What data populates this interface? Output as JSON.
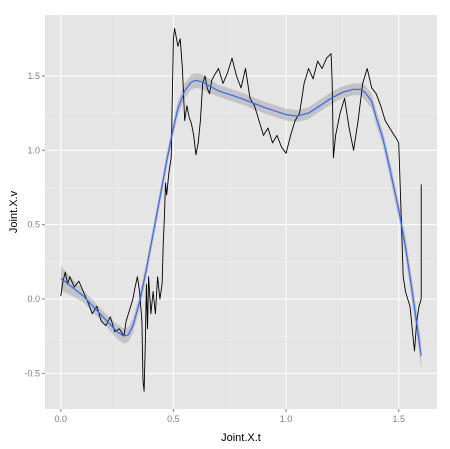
{
  "chart_data": {
    "type": "line",
    "title": "",
    "xlabel": "Joint.X.t",
    "ylabel": "Joint.X.v",
    "xlim": [
      -0.07,
      1.67
    ],
    "ylim": [
      -0.74,
      1.91
    ],
    "x_ticks": [
      0.0,
      0.5,
      1.0,
      1.5
    ],
    "x_tick_labels": [
      "0.0",
      "0.5",
      "1.0",
      "1.5"
    ],
    "y_ticks": [
      -0.5,
      0.0,
      0.5,
      1.0,
      1.5
    ],
    "y_tick_labels": [
      "-0.5",
      "0.0",
      "0.5",
      "1.0",
      "1.5"
    ],
    "grid": true,
    "colors": {
      "panel_background": "#e5e5e5",
      "major_grid": "#ffffff",
      "minor_grid": "#f0f0f0",
      "raw_series": "#000000",
      "smooth_line": "#3366ff",
      "smooth_band": "#999999"
    },
    "series": [
      {
        "role": "raw",
        "x": [
          0.0,
          0.01,
          0.02,
          0.03,
          0.04,
          0.06,
          0.08,
          0.1,
          0.12,
          0.14,
          0.16,
          0.18,
          0.2,
          0.22,
          0.24,
          0.26,
          0.28,
          0.29,
          0.3,
          0.32,
          0.33,
          0.34,
          0.35,
          0.36,
          0.365,
          0.37,
          0.375,
          0.38,
          0.385,
          0.39,
          0.4,
          0.41,
          0.42,
          0.43,
          0.44,
          0.45,
          0.455,
          0.46,
          0.465,
          0.47,
          0.48,
          0.49,
          0.5,
          0.505,
          0.51,
          0.52,
          0.53,
          0.54,
          0.55,
          0.56,
          0.57,
          0.58,
          0.59,
          0.6,
          0.61,
          0.62,
          0.63,
          0.64,
          0.65,
          0.66,
          0.67,
          0.68,
          0.7,
          0.72,
          0.74,
          0.76,
          0.78,
          0.8,
          0.82,
          0.84,
          0.86,
          0.88,
          0.9,
          0.92,
          0.94,
          0.96,
          0.98,
          1.0,
          1.02,
          1.04,
          1.06,
          1.08,
          1.1,
          1.12,
          1.14,
          1.16,
          1.18,
          1.2,
          1.205,
          1.21,
          1.22,
          1.24,
          1.26,
          1.28,
          1.3,
          1.32,
          1.34,
          1.36,
          1.38,
          1.4,
          1.42,
          1.44,
          1.46,
          1.48,
          1.49,
          1.5,
          1.51,
          1.52,
          1.53,
          1.54,
          1.55,
          1.56,
          1.57,
          1.58,
          1.59,
          1.6,
          1.6,
          1.6
        ],
        "y": [
          0.02,
          0.12,
          0.18,
          0.1,
          0.15,
          0.08,
          0.12,
          0.05,
          -0.02,
          -0.1,
          -0.05,
          -0.15,
          -0.18,
          -0.12,
          -0.22,
          -0.2,
          -0.25,
          -0.15,
          -0.1,
          0.0,
          0.08,
          0.15,
          0.05,
          -0.15,
          -0.55,
          -0.62,
          -0.3,
          0.1,
          -0.2,
          0.15,
          -0.1,
          0.05,
          -0.1,
          0.15,
          0.0,
          0.1,
          0.38,
          0.55,
          0.78,
          0.7,
          0.85,
          0.95,
          1.75,
          1.82,
          1.78,
          1.7,
          1.75,
          1.55,
          1.2,
          1.3,
          1.22,
          1.18,
          1.1,
          0.97,
          1.05,
          1.2,
          1.45,
          1.5,
          1.42,
          1.38,
          1.47,
          1.5,
          1.55,
          1.45,
          1.52,
          1.62,
          1.5,
          1.42,
          1.55,
          1.35,
          1.3,
          1.2,
          1.1,
          1.15,
          1.05,
          1.1,
          1.02,
          0.98,
          1.1,
          1.2,
          1.25,
          1.45,
          1.55,
          1.48,
          1.6,
          1.55,
          1.62,
          1.65,
          1.45,
          0.95,
          1.1,
          1.25,
          1.35,
          1.15,
          1.0,
          1.2,
          1.45,
          1.55,
          1.42,
          1.38,
          1.3,
          1.2,
          1.15,
          1.1,
          1.08,
          1.05,
          0.6,
          0.15,
          0.05,
          0.0,
          -0.05,
          -0.2,
          -0.35,
          -0.15,
          -0.05,
          0.0,
          0.35,
          0.77
        ]
      },
      {
        "role": "smooth",
        "x": [
          0.0,
          0.1,
          0.2,
          0.25,
          0.28,
          0.3,
          0.32,
          0.35,
          0.38,
          0.4,
          0.42,
          0.45,
          0.47,
          0.5,
          0.52,
          0.55,
          0.58,
          0.6,
          0.63,
          0.65,
          0.7,
          0.8,
          0.9,
          1.0,
          1.05,
          1.1,
          1.15,
          1.2,
          1.25,
          1.3,
          1.33,
          1.35,
          1.38,
          1.4,
          1.43,
          1.46,
          1.5,
          1.53,
          1.56,
          1.6
        ],
        "y": [
          0.14,
          0.02,
          -0.14,
          -0.22,
          -0.25,
          -0.24,
          -0.18,
          -0.02,
          0.2,
          0.36,
          0.52,
          0.76,
          0.93,
          1.15,
          1.28,
          1.4,
          1.46,
          1.47,
          1.46,
          1.44,
          1.4,
          1.35,
          1.29,
          1.24,
          1.23,
          1.25,
          1.3,
          1.35,
          1.39,
          1.41,
          1.41,
          1.39,
          1.33,
          1.22,
          1.08,
          0.88,
          0.6,
          0.35,
          0.05,
          -0.38
        ],
        "se": [
          0.08,
          0.04,
          0.04,
          0.05,
          0.05,
          0.05,
          0.05,
          0.05,
          0.05,
          0.05,
          0.05,
          0.05,
          0.05,
          0.05,
          0.05,
          0.05,
          0.05,
          0.05,
          0.05,
          0.05,
          0.04,
          0.04,
          0.04,
          0.04,
          0.04,
          0.04,
          0.04,
          0.04,
          0.04,
          0.04,
          0.04,
          0.05,
          0.05,
          0.05,
          0.05,
          0.06,
          0.06,
          0.07,
          0.08,
          0.09
        ]
      }
    ]
  }
}
